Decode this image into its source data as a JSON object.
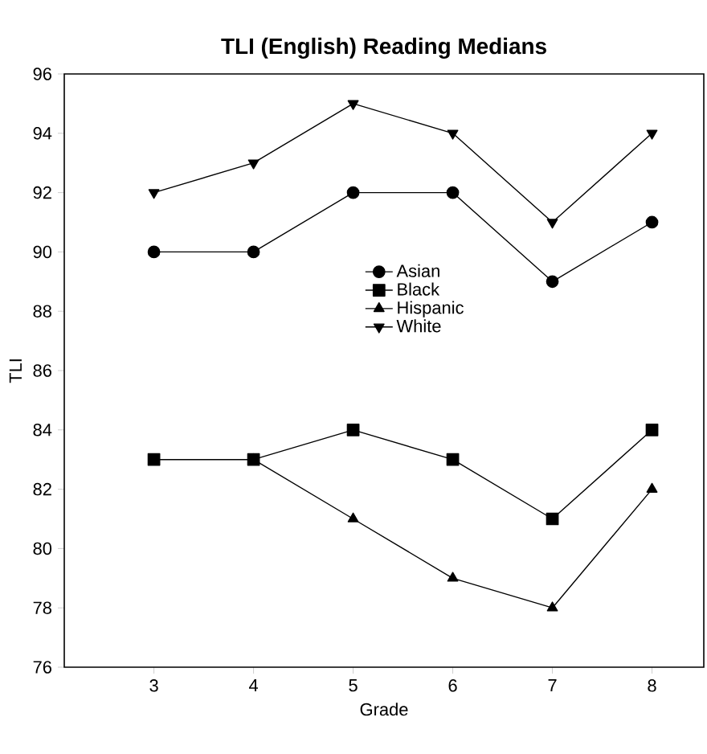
{
  "chart_data": {
    "type": "line",
    "title": "TLI (English) Reading Medians",
    "xlabel": "Grade",
    "ylabel": "TLI",
    "x": [
      3,
      4,
      5,
      6,
      7,
      8
    ],
    "series": [
      {
        "name": "Asian",
        "color": "#000000",
        "marker": "circle",
        "values": [
          90,
          90,
          92,
          92,
          89,
          91
        ]
      },
      {
        "name": "Black",
        "color": "#000000",
        "marker": "square",
        "values": [
          83,
          83,
          84,
          83,
          81,
          84
        ]
      },
      {
        "name": "Hispanic",
        "color": "#000000",
        "marker": "triangle",
        "values": [
          null,
          83,
          81,
          79,
          78,
          82
        ]
      },
      {
        "name": "White",
        "color": "#000000",
        "marker": "triangle down",
        "values": [
          92,
          93,
          95,
          94,
          91,
          94
        ]
      }
    ],
    "xlim": [
      2.1,
      8.52
    ],
    "ylim": [
      76,
      96
    ],
    "xticks": [
      3,
      4,
      5,
      6,
      7,
      8
    ],
    "yticks": [
      76,
      78,
      80,
      82,
      84,
      86,
      88,
      90,
      92,
      94,
      96
    ],
    "legend": "center",
    "line_style": "solid",
    "grid": false
  }
}
